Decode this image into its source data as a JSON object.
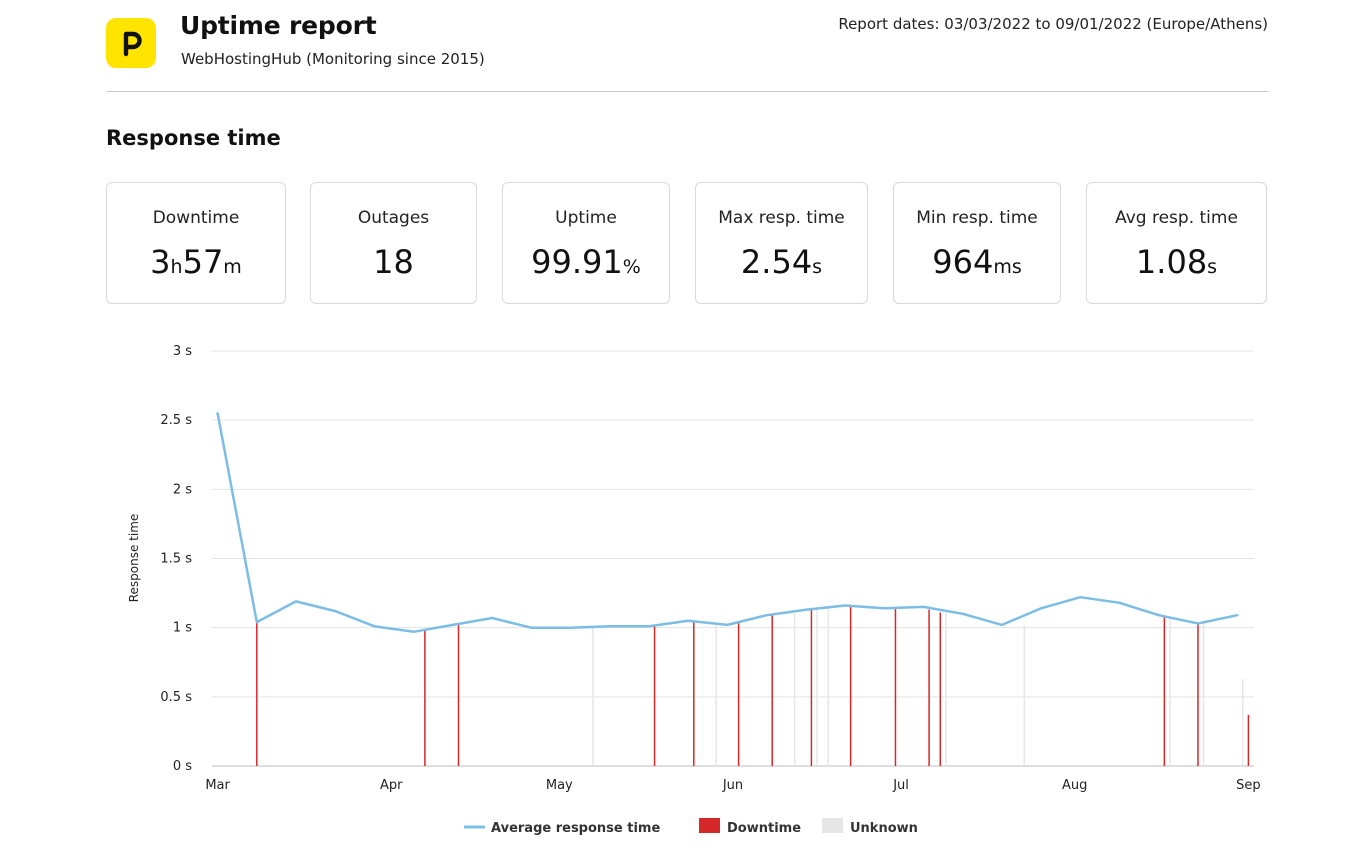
{
  "header": {
    "title": "Uptime report",
    "subtitle": "WebHostingHub (Monitoring since 2015)",
    "report_dates": "Report dates: 03/03/2022 to 09/01/2022 (Europe/Athens)"
  },
  "section_title": "Response time",
  "stats": [
    {
      "label": "Downtime",
      "value1": "3",
      "unit1": "h",
      "value2": "57",
      "unit2": "m"
    },
    {
      "label": "Outages",
      "value1": "18",
      "unit1": "",
      "value2": "",
      "unit2": ""
    },
    {
      "label": "Uptime",
      "value1": "99.91",
      "unit1": "%",
      "value2": "",
      "unit2": ""
    },
    {
      "label": "Max resp. time",
      "value1": "2.54",
      "unit1": "s",
      "value2": "",
      "unit2": ""
    },
    {
      "label": "Min resp. time",
      "value1": "964",
      "unit1": "ms",
      "value2": "",
      "unit2": ""
    },
    {
      "label": "Avg resp. time",
      "value1": "1.08",
      "unit1": "s",
      "value2": "",
      "unit2": ""
    }
  ],
  "colors": {
    "accent": "#ffe400",
    "line": "#7cbde6",
    "downtime": "#d62828",
    "unknown": "#e6e6e6",
    "grid": "#e3e3e3"
  },
  "chart_data": {
    "type": "line",
    "ylabel": "Response time",
    "ylim": [
      0,
      3
    ],
    "yticks": [
      0,
      0.5,
      1,
      1.5,
      2,
      2.5,
      3
    ],
    "ytick_labels": [
      "0 s",
      "0.5 s",
      "1 s",
      "1.5 s",
      "2 s",
      "2.5 s",
      "3 s"
    ],
    "xlim": [
      "2022-02-28",
      "2022-09-02"
    ],
    "xticks": [
      {
        "date": "2022-03-01",
        "label": "Mar"
      },
      {
        "date": "2022-04-01",
        "label": "Apr"
      },
      {
        "date": "2022-05-01",
        "label": "May"
      },
      {
        "date": "2022-06-01",
        "label": "Jun"
      },
      {
        "date": "2022-07-01",
        "label": "Jul"
      },
      {
        "date": "2022-08-01",
        "label": "Aug"
      },
      {
        "date": "2022-09-01",
        "label": "Sep"
      }
    ],
    "grid": true,
    "legend_position": "bottom",
    "series": [
      {
        "name": "Average response time",
        "points": [
          [
            "2022-03-01",
            2.55
          ],
          [
            "2022-03-08",
            1.04
          ],
          [
            "2022-03-15",
            1.19
          ],
          [
            "2022-03-22",
            1.12
          ],
          [
            "2022-03-29",
            1.01
          ],
          [
            "2022-04-05",
            0.97
          ],
          [
            "2022-04-12",
            1.02
          ],
          [
            "2022-04-19",
            1.07
          ],
          [
            "2022-04-26",
            1.0
          ],
          [
            "2022-05-03",
            1.0
          ],
          [
            "2022-05-10",
            1.01
          ],
          [
            "2022-05-17",
            1.01
          ],
          [
            "2022-05-24",
            1.05
          ],
          [
            "2022-05-31",
            1.02
          ],
          [
            "2022-06-07",
            1.09
          ],
          [
            "2022-06-14",
            1.13
          ],
          [
            "2022-06-21",
            1.16
          ],
          [
            "2022-06-28",
            1.14
          ],
          [
            "2022-07-05",
            1.15
          ],
          [
            "2022-07-12",
            1.1
          ],
          [
            "2022-07-19",
            1.02
          ],
          [
            "2022-07-26",
            1.14
          ],
          [
            "2022-08-02",
            1.22
          ],
          [
            "2022-08-09",
            1.18
          ],
          [
            "2022-08-16",
            1.09
          ],
          [
            "2022-08-23",
            1.03
          ],
          [
            "2022-08-30",
            1.09
          ]
        ]
      }
    ],
    "downtime_events": [
      [
        "2022-03-08",
        1.04
      ],
      [
        "2022-04-07",
        0.98
      ],
      [
        "2022-04-13",
        1.03
      ],
      [
        "2022-05-18",
        1.01
      ],
      [
        "2022-05-25",
        1.05
      ],
      [
        "2022-06-02",
        1.04
      ],
      [
        "2022-06-08",
        1.09
      ],
      [
        "2022-06-15",
        1.14
      ],
      [
        "2022-06-22",
        1.16
      ],
      [
        "2022-06-30",
        1.15
      ],
      [
        "2022-07-06",
        1.13
      ],
      [
        "2022-07-08",
        1.11
      ],
      [
        "2022-08-17",
        1.08
      ],
      [
        "2022-08-23",
        1.03
      ],
      [
        "2022-09-01",
        0.37
      ]
    ],
    "unknown_events": [
      [
        "2022-05-07",
        1.01
      ],
      [
        "2022-05-29",
        1.02
      ],
      [
        "2022-06-12",
        1.1
      ],
      [
        "2022-06-16",
        1.14
      ],
      [
        "2022-06-18",
        1.15
      ],
      [
        "2022-07-09",
        1.11
      ],
      [
        "2022-07-23",
        1.02
      ],
      [
        "2022-08-18",
        1.08
      ],
      [
        "2022-08-24",
        1.04
      ],
      [
        "2022-08-31",
        0.63
      ]
    ],
    "legend": [
      {
        "label": "Average response time",
        "kind": "line"
      },
      {
        "label": "Downtime",
        "kind": "box"
      },
      {
        "label": "Unknown",
        "kind": "box"
      }
    ]
  }
}
